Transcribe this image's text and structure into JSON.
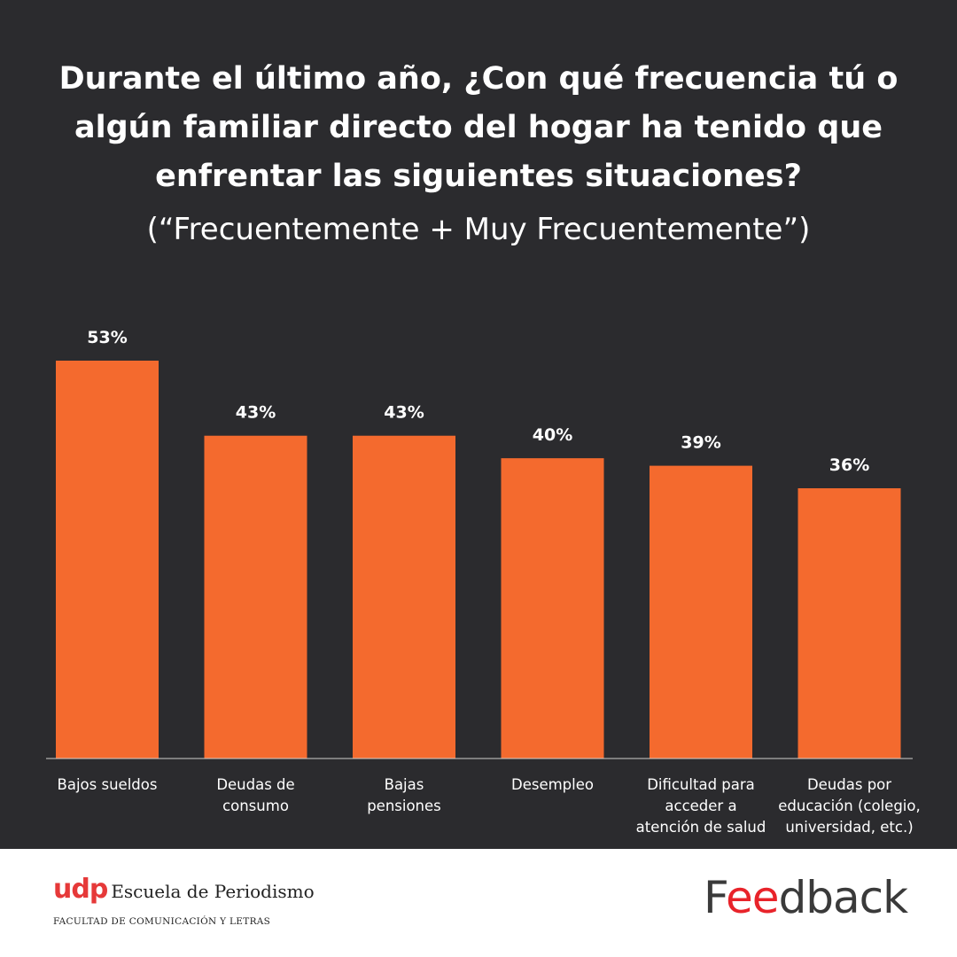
{
  "header": {
    "title": "Durante el último año, ¿Con qué frecuencia tú o algún familiar directo del hogar ha tenido que enfrentar las siguientes situaciones?",
    "subtitle": "(“Frecuentemente + Muy Frecuentemente”)"
  },
  "colors": {
    "background": "#2b2b2e",
    "bar": "#f46a2e",
    "text": "#ffffff",
    "footer_bg": "#ffffff",
    "udp_red": "#e63939",
    "feedback_red": "#e8232a",
    "feedback_gray": "#3a3a3a"
  },
  "chart_data": {
    "type": "bar",
    "title": "Durante el último año, ¿Con qué frecuencia tú o algún familiar directo del hogar ha tenido que enfrentar las siguientes situaciones?",
    "subtitle": "(“Frecuentemente + Muy Frecuentemente”)",
    "categories": [
      [
        "Bajos sueldos"
      ],
      [
        "Deudas de",
        "consumo"
      ],
      [
        "Bajas",
        "pensiones"
      ],
      [
        "Desempleo"
      ],
      [
        "Dificultad para",
        "acceder a",
        "atención de salud"
      ],
      [
        "Deudas por",
        "educación (colegio,",
        "universidad, etc.)"
      ]
    ],
    "values": [
      53,
      43,
      43,
      40,
      39,
      36
    ],
    "value_labels": [
      "53%",
      "43%",
      "43%",
      "40%",
      "39%",
      "36%"
    ],
    "unit": "%",
    "ylim": [
      0,
      53
    ],
    "grid": false,
    "legend": "none",
    "xlabel": "",
    "ylabel": ""
  },
  "footer": {
    "udp_mark": "udp",
    "udp_school": "Escuela de Periodismo",
    "faculty": "FACULTAD DE COMUNICACIÓN Y LETRAS",
    "feedback_logo": "Feedback"
  }
}
